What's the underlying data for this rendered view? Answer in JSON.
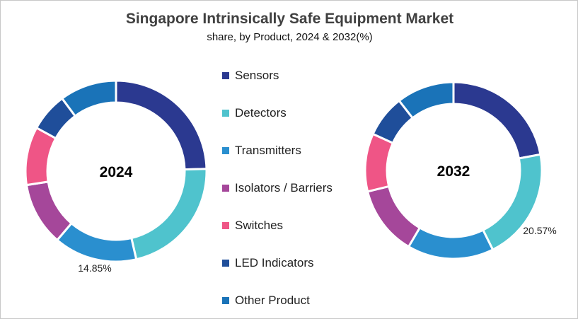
{
  "chart_data": [
    {
      "type": "pie",
      "donut": true,
      "title": "Singapore Intrinsically Safe Equipment Market",
      "subtitle": "share, by Product, 2024 & 2032(%)",
      "center_label": "2024",
      "categories": [
        "Sensors",
        "Detectors",
        "Transmitters",
        "Isolators / Barriers",
        "Switches",
        "LED Indicators",
        "Other Product"
      ],
      "values": [
        24.6,
        21.8,
        14.85,
        11.3,
        10.4,
        6.9,
        10.15
      ],
      "data_labels": [
        {
          "category": "Transmitters",
          "text": "14.85%"
        }
      ]
    },
    {
      "type": "pie",
      "donut": true,
      "center_label": "2032",
      "categories": [
        "Sensors",
        "Detectors",
        "Transmitters",
        "Isolators / Barriers",
        "Switches",
        "LED Indicators",
        "Other Product"
      ],
      "values": [
        22.1,
        20.57,
        15.8,
        12.7,
        10.6,
        7.7,
        10.53
      ],
      "data_labels": [
        {
          "category": "Detectors",
          "text": "20.57%"
        }
      ]
    }
  ],
  "legend": {
    "placement": "center",
    "items": [
      {
        "label": "Sensors",
        "color": "#2B3990"
      },
      {
        "label": "Detectors",
        "color": "#4FC3CD"
      },
      {
        "label": "Transmitters",
        "color": "#2A8FCF"
      },
      {
        "label": "Isolators / Barriers",
        "color": "#A5479A"
      },
      {
        "label": "Switches",
        "color": "#EF5586"
      },
      {
        "label": "LED Indicators",
        "color": "#1F4E9A"
      },
      {
        "label": "Other Product",
        "color": "#1A73B8"
      }
    ]
  }
}
